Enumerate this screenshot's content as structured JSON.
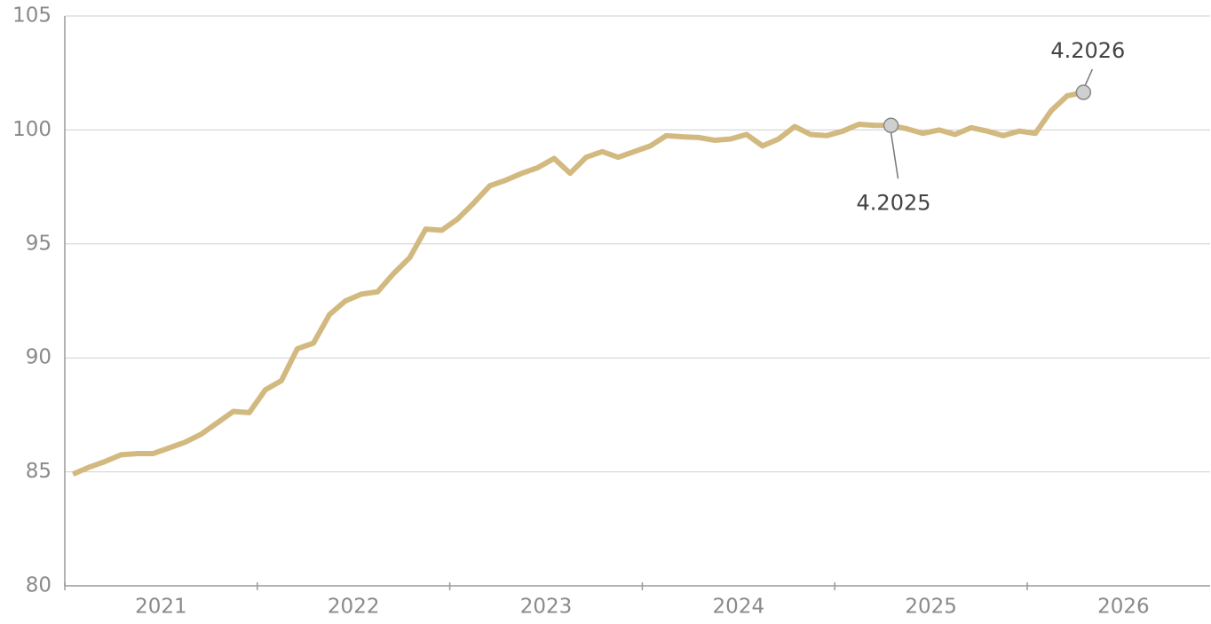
{
  "chart_data": {
    "type": "line",
    "x": [
      2021.042,
      2021.125,
      2021.208,
      2021.292,
      2021.375,
      2021.458,
      2021.542,
      2021.625,
      2021.708,
      2021.792,
      2021.875,
      2021.958,
      2022.042,
      2022.125,
      2022.208,
      2022.292,
      2022.375,
      2022.458,
      2022.542,
      2022.625,
      2022.708,
      2022.792,
      2022.875,
      2022.958,
      2023.042,
      2023.125,
      2023.208,
      2023.292,
      2023.375,
      2023.458,
      2023.542,
      2023.625,
      2023.708,
      2023.792,
      2023.875,
      2023.958,
      2024.042,
      2024.125,
      2024.208,
      2024.292,
      2024.375,
      2024.458,
      2024.542,
      2024.625,
      2024.708,
      2024.792,
      2024.875,
      2024.958,
      2025.042,
      2025.125,
      2025.208,
      2025.292,
      2025.375,
      2025.458,
      2025.542,
      2025.625,
      2025.708,
      2025.792,
      2025.875,
      2025.958,
      2026.042,
      2026.125,
      2026.208,
      2026.292
    ],
    "series": [
      {
        "color": "#d2b97f",
        "values": [
          84.9,
          85.2,
          85.45,
          85.75,
          85.8,
          85.8,
          86.05,
          86.3,
          86.65,
          87.15,
          87.65,
          87.6,
          88.6,
          89.0,
          90.4,
          90.65,
          91.9,
          92.5,
          92.8,
          92.9,
          93.7,
          94.4,
          95.65,
          95.6,
          96.1,
          96.8,
          97.55,
          97.8,
          98.1,
          98.35,
          98.75,
          98.1,
          98.8,
          99.05,
          98.8,
          99.05,
          99.3,
          99.75,
          99.7,
          99.67,
          99.55,
          99.6,
          99.8,
          99.3,
          99.6,
          100.15,
          99.8,
          99.75,
          99.95,
          100.25,
          100.2,
          100.2,
          100.05,
          99.85,
          100.0,
          99.8,
          100.1,
          99.95,
          99.75,
          99.95,
          99.85,
          100.85,
          101.5,
          101.65
        ]
      }
    ],
    "annotations": [
      {
        "text": "4.2025",
        "x": 2025.292,
        "position": "below"
      },
      {
        "text": "4.2026",
        "x": 2026.292,
        "position": "above"
      }
    ],
    "xlim": [
      2021,
      2026.95
    ],
    "xticks": [
      2021,
      2022,
      2023,
      2024,
      2025,
      2026
    ],
    "ylim": [
      80,
      105
    ],
    "yticks": [
      80,
      85,
      90,
      95,
      100,
      105
    ],
    "grid": true
  }
}
